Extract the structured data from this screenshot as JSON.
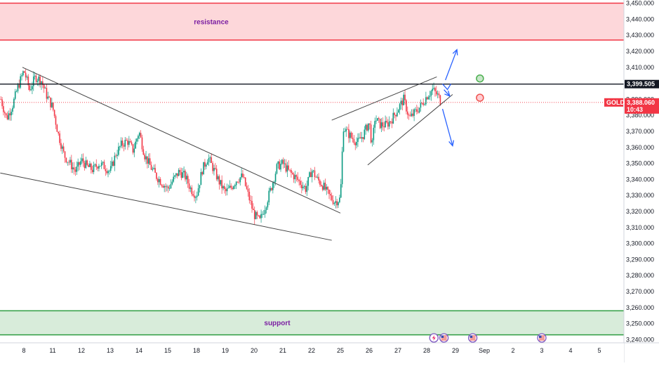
{
  "chart_data": {
    "type": "candlestick",
    "symbol": "GOLD",
    "ylim": [
      3238,
      3452
    ],
    "y_ticks": [
      3250,
      3260,
      3270,
      3280,
      3290,
      3300,
      3310,
      3320,
      3330,
      3340,
      3350,
      3360,
      3370,
      3380,
      3390,
      3400,
      3410,
      3420,
      3430,
      3440,
      3450
    ],
    "y_tick_labels": [
      "3,250.000",
      "3,260.000",
      "3,270.000",
      "3,280.000",
      "3,290.000",
      "3,300.000",
      "3,310.000",
      "3,320.000",
      "3,330.000",
      "3,340.000",
      "3,350.000",
      "3,360.000",
      "3,370.000",
      "3,380.000",
      "3,390.000",
      "3,400.000",
      "3,410.000",
      "3,420.000",
      "3,430.000",
      "3,440.000",
      "3,450.000"
    ],
    "y_bottom_label": "3,240.000",
    "x_ticks": [
      {
        "label": "8",
        "slot": 0
      },
      {
        "label": "11",
        "slot": 1
      },
      {
        "label": "12",
        "slot": 2
      },
      {
        "label": "13",
        "slot": 3
      },
      {
        "label": "14",
        "slot": 4
      },
      {
        "label": "15",
        "slot": 5
      },
      {
        "label": "18",
        "slot": 6
      },
      {
        "label": "19",
        "slot": 7
      },
      {
        "label": "20",
        "slot": 8
      },
      {
        "label": "21",
        "slot": 9
      },
      {
        "label": "22",
        "slot": 10
      },
      {
        "label": "25",
        "slot": 11
      },
      {
        "label": "26",
        "slot": 12
      },
      {
        "label": "27",
        "slot": 13
      },
      {
        "label": "28",
        "slot": 14
      },
      {
        "label": "29",
        "slot": 15
      },
      {
        "label": "Sep",
        "slot": 16
      },
      {
        "label": "2",
        "slot": 17
      },
      {
        "label": "3",
        "slot": 18
      },
      {
        "label": "4",
        "slot": 19
      },
      {
        "label": "5",
        "slot": 20
      }
    ],
    "x_range": [
      -0.82,
      20.35
    ],
    "anchors": [
      [
        -0.8,
        3390
      ],
      [
        -0.6,
        3378
      ],
      [
        -0.4,
        3386
      ],
      [
        -0.2,
        3398
      ],
      [
        0.0,
        3408
      ],
      [
        0.2,
        3396
      ],
      [
        0.4,
        3404
      ],
      [
        0.6,
        3402
      ],
      [
        0.8,
        3392
      ],
      [
        1.0,
        3385
      ],
      [
        1.2,
        3368
      ],
      [
        1.4,
        3355
      ],
      [
        1.6,
        3350
      ],
      [
        1.8,
        3345
      ],
      [
        2.0,
        3352
      ],
      [
        2.2,
        3348
      ],
      [
        2.4,
        3346
      ],
      [
        2.6,
        3350
      ],
      [
        2.8,
        3348
      ],
      [
        3.0,
        3345
      ],
      [
        3.2,
        3356
      ],
      [
        3.4,
        3362
      ],
      [
        3.6,
        3364
      ],
      [
        3.8,
        3358
      ],
      [
        4.0,
        3370
      ],
      [
        4.2,
        3355
      ],
      [
        4.4,
        3348
      ],
      [
        4.6,
        3342
      ],
      [
        4.8,
        3338
      ],
      [
        5.0,
        3334
      ],
      [
        5.2,
        3340
      ],
      [
        5.4,
        3345
      ],
      [
        5.6,
        3342
      ],
      [
        5.8,
        3334
      ],
      [
        6.0,
        3330
      ],
      [
        6.2,
        3346
      ],
      [
        6.4,
        3354
      ],
      [
        6.6,
        3346
      ],
      [
        6.8,
        3338
      ],
      [
        7.0,
        3332
      ],
      [
        7.2,
        3335
      ],
      [
        7.4,
        3340
      ],
      [
        7.6,
        3342
      ],
      [
        7.8,
        3330
      ],
      [
        8.0,
        3318
      ],
      [
        8.2,
        3314
      ],
      [
        8.4,
        3324
      ],
      [
        8.6,
        3335
      ],
      [
        8.8,
        3348
      ],
      [
        9.0,
        3350
      ],
      [
        9.2,
        3345
      ],
      [
        9.4,
        3342
      ],
      [
        9.6,
        3338
      ],
      [
        9.8,
        3334
      ],
      [
        10.0,
        3346
      ],
      [
        10.2,
        3340
      ],
      [
        10.4,
        3336
      ],
      [
        10.6,
        3330
      ],
      [
        10.8,
        3326
      ],
      [
        11.0,
        3328
      ],
      [
        11.1,
        3373
      ],
      [
        11.2,
        3370
      ],
      [
        11.4,
        3366
      ],
      [
        11.6,
        3363
      ],
      [
        11.8,
        3368
      ],
      [
        12.0,
        3376
      ],
      [
        12.1,
        3360
      ],
      [
        12.2,
        3378
      ],
      [
        12.4,
        3374
      ],
      [
        12.6,
        3374
      ],
      [
        12.8,
        3378
      ],
      [
        13.0,
        3384
      ],
      [
        13.2,
        3390
      ],
      [
        13.4,
        3378
      ],
      [
        13.6,
        3382
      ],
      [
        13.8,
        3386
      ],
      [
        14.0,
        3392
      ],
      [
        14.2,
        3396
      ],
      [
        14.4,
        3392
      ],
      [
        14.5,
        3388
      ]
    ],
    "resistance_zone": {
      "label": "resistance",
      "from": 3427,
      "to": 3450
    },
    "support_zone": {
      "label": "support",
      "from": 3243,
      "to": 3258
    },
    "horizontal_line": {
      "price": 3399.505,
      "label": "3,399.505"
    },
    "current_price": {
      "price": 3388.06,
      "label": "3,388.060",
      "countdown": "10:43"
    },
    "trendlines": [
      {
        "from": [
          -0.05,
          3410
        ],
        "to": [
          11.0,
          3319
        ]
      },
      {
        "from": [
          -0.82,
          3344
        ],
        "to": [
          10.7,
          3302
        ]
      },
      {
        "from": [
          10.7,
          3377
        ],
        "to": [
          14.35,
          3404
        ]
      },
      {
        "from": [
          11.95,
          3349
        ],
        "to": [
          14.9,
          3393
        ]
      }
    ],
    "arrows": [
      {
        "from": [
          14.65,
          3402
        ],
        "to": [
          15.05,
          3421
        ]
      },
      {
        "from": [
          14.6,
          3396
        ],
        "to": [
          14.8,
          3392
        ]
      },
      {
        "from": [
          14.55,
          3384
        ],
        "to": [
          14.9,
          3361
        ]
      }
    ],
    "markers": [
      {
        "x": 15.85,
        "price": 3403,
        "color": "#4caf50"
      },
      {
        "x": 15.85,
        "price": 3391,
        "color": "#ef5350"
      }
    ],
    "event_icons": [
      {
        "x": 14.25,
        "type": "bolt"
      },
      {
        "x": 14.6,
        "type": "flag"
      },
      {
        "x": 15.6,
        "type": "flag"
      },
      {
        "x": 18.0,
        "type": "flag"
      }
    ]
  }
}
